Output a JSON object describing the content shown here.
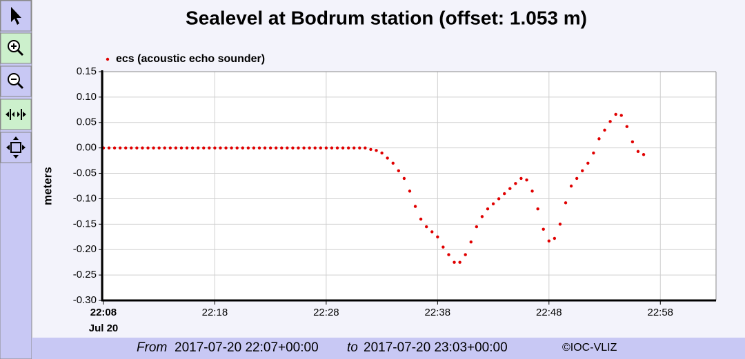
{
  "chart_data": {
    "type": "scatter",
    "title": "Sealevel at Bodrum station (offset: 1.053 m)",
    "y_label": "meters",
    "x_tick_sublabel": "Jul 20",
    "footer": {
      "from_word": "From",
      "start": "2017-07-20 22:07+00:00",
      "to_word": "to",
      "end": "2017-07-20 23:03+00:00",
      "credit": "©IOC-VLIZ"
    },
    "grid": true,
    "legend": "top-left",
    "xlim": [
      7.88,
      63
    ],
    "ylim": [
      -0.3,
      0.15
    ],
    "xticks": [
      {
        "value": 8,
        "label": "22:08"
      },
      {
        "value": 18,
        "label": "22:18"
      },
      {
        "value": 28,
        "label": "22:28"
      },
      {
        "value": 38,
        "label": "22:38"
      },
      {
        "value": 48,
        "label": "22:48"
      },
      {
        "value": 58,
        "label": "22:58"
      }
    ],
    "yticks": [
      0.15,
      {
        "value": 0.1,
        "label": "0.10"
      },
      0.05,
      {
        "value": 0,
        "label": "0.00"
      },
      -0.05,
      {
        "value": -0.1,
        "label": "-0.10"
      },
      -0.15,
      {
        "value": -0.2,
        "label": "-0.20"
      },
      -0.25,
      {
        "value": -0.3,
        "label": "-0.30"
      }
    ],
    "x": [
      8,
      8.5,
      9,
      9.5,
      10,
      10.5,
      11,
      11.5,
      12,
      12.5,
      13,
      13.5,
      14,
      14.5,
      15,
      15.5,
      16,
      16.5,
      17,
      17.5,
      18,
      18.5,
      19,
      19.5,
      20,
      20.5,
      21,
      21.5,
      22,
      22.5,
      23,
      23.5,
      24,
      24.5,
      25,
      25.5,
      26,
      26.5,
      27,
      27.5,
      28,
      28.5,
      29,
      29.5,
      30,
      30.5,
      31,
      31.5,
      32,
      32.5,
      33,
      33.5,
      34,
      34.5,
      35,
      35.5,
      36,
      36.5,
      37,
      37.5,
      38,
      38.5,
      39,
      39.5,
      40,
      40.5,
      41,
      41.5,
      42,
      42.5,
      43,
      43.5,
      44,
      44.5,
      45,
      45.5,
      46,
      46.5,
      47,
      47.5,
      48,
      48.5,
      49,
      49.5,
      50,
      50.5,
      51,
      51.5,
      52,
      52.5,
      53,
      53.5,
      54,
      54.5,
      55,
      55.5,
      56,
      56.5
    ],
    "series": [
      {
        "name": "ecs (acoustic echo sounder)",
        "color": "#e00000",
        "values": [
          0,
          0,
          0,
          0,
          0,
          0,
          0,
          0,
          0,
          0,
          0,
          0,
          0,
          0,
          0,
          0,
          0,
          0,
          0,
          0,
          0,
          0,
          0,
          0,
          0,
          0,
          0,
          0,
          0,
          0,
          0,
          0,
          0,
          0,
          0,
          0,
          0,
          0,
          0,
          0,
          0,
          0,
          0,
          0,
          0,
          0,
          0,
          0,
          -0.003,
          -0.005,
          -0.01,
          -0.02,
          -0.03,
          -0.045,
          -0.06,
          -0.085,
          -0.115,
          -0.14,
          -0.155,
          -0.165,
          -0.175,
          -0.195,
          -0.21,
          -0.225,
          -0.225,
          -0.21,
          -0.185,
          -0.155,
          -0.135,
          -0.12,
          -0.11,
          -0.1,
          -0.09,
          -0.08,
          -0.07,
          -0.06,
          -0.063,
          -0.085,
          -0.12,
          -0.16,
          -0.183,
          -0.178,
          -0.15,
          -0.108,
          -0.075,
          -0.06,
          -0.045,
          -0.03,
          -0.01,
          0.018,
          0.035,
          0.052,
          0.066,
          0.064,
          0.042,
          0.012,
          -0.007,
          -0.013
        ]
      }
    ]
  }
}
